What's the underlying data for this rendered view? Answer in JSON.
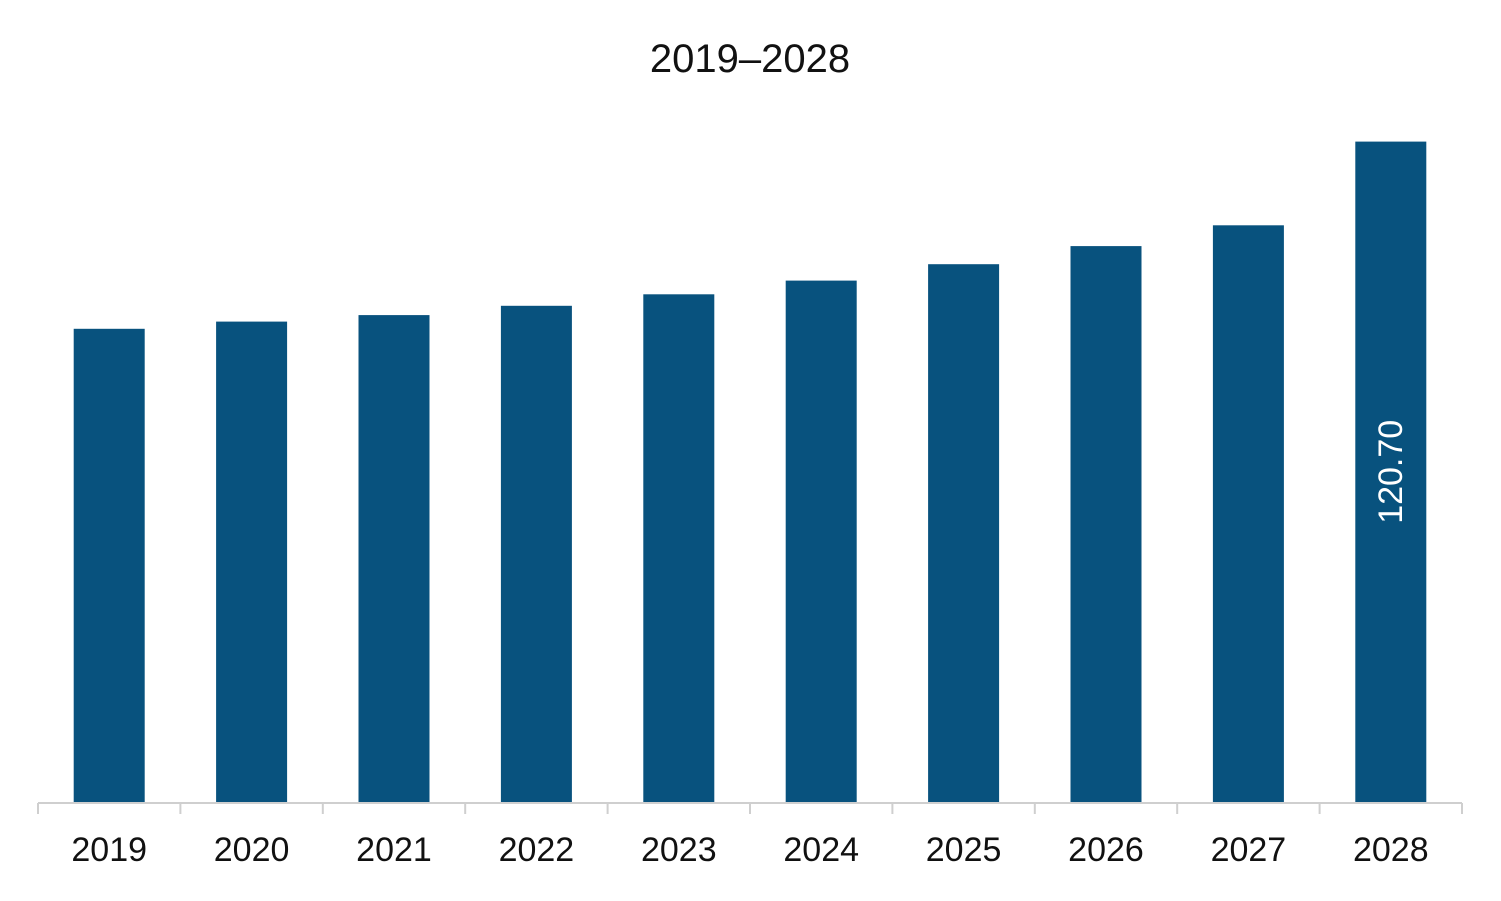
{
  "colors": {
    "bar": "#08527E",
    "axis": "#CFCFCF",
    "text": "#111111",
    "data_label": "#FFFFFF"
  },
  "chart_data": {
    "type": "bar",
    "title": "2019–2028",
    "xlabel": "",
    "ylabel": "",
    "categories": [
      "2019",
      "2020",
      "2021",
      "2022",
      "2023",
      "2024",
      "2025",
      "2026",
      "2027",
      "2028"
    ],
    "values": [
      86.5,
      87.8,
      89.0,
      90.7,
      92.8,
      95.3,
      98.3,
      101.6,
      105.4,
      120.7
    ],
    "data_labels": [
      "",
      "",
      "",
      "",
      "",
      "",
      "",
      "",
      "",
      "120.70"
    ],
    "ylim": [
      0,
      121
    ],
    "grid": false,
    "legend": "none"
  }
}
